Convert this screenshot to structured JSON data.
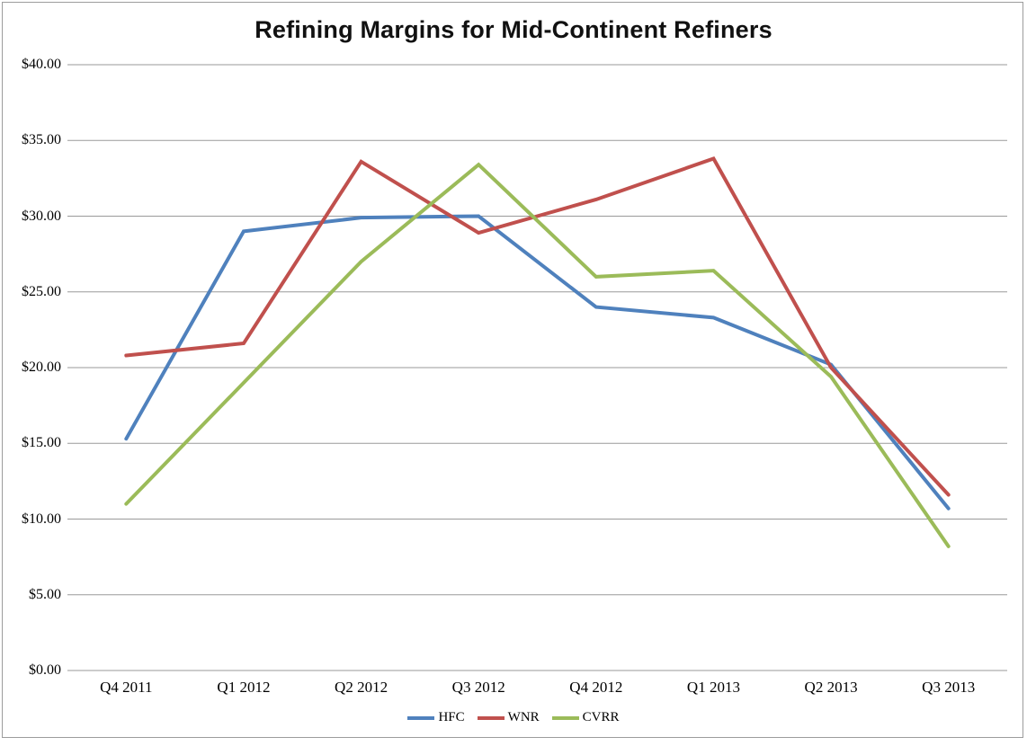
{
  "window": {
    "background_color": "#ffffff",
    "border_color": "#9c9c9c"
  },
  "chart_data": {
    "type": "line",
    "title": "Refining Margins for Mid-Continent Refiners",
    "categories": [
      "Q4 2011",
      "Q1 2012",
      "Q2 2012",
      "Q3 2012",
      "Q4 2012",
      "Q1 2013",
      "Q2 2013",
      "Q3 2013"
    ],
    "series": [
      {
        "name": "HFC",
        "color": "#4F81BD",
        "values": [
          15.3,
          29.0,
          29.9,
          30.0,
          24.0,
          23.3,
          20.2,
          10.7
        ]
      },
      {
        "name": "WNR",
        "color": "#C0504D",
        "values": [
          20.8,
          21.6,
          33.6,
          28.9,
          31.1,
          33.8,
          20.0,
          11.6
        ]
      },
      {
        "name": "CVRR",
        "color": "#9BBB59",
        "values": [
          11.0,
          19.0,
          27.0,
          33.4,
          26.0,
          26.4,
          19.4,
          8.2
        ]
      }
    ],
    "xlabel": "",
    "ylabel": "",
    "ylim": [
      0,
      40
    ],
    "y_tick_step": 5,
    "y_ticks": [
      "$40.00",
      "$35.00",
      "$30.00",
      "$25.00",
      "$20.00",
      "$15.00",
      "$10.00",
      "$5.00",
      "$0.00"
    ],
    "grid": "horizontal gridlines only",
    "gridline_color": "#9a9a9a",
    "legend_position": "bottom-center",
    "line_width": 4
  }
}
